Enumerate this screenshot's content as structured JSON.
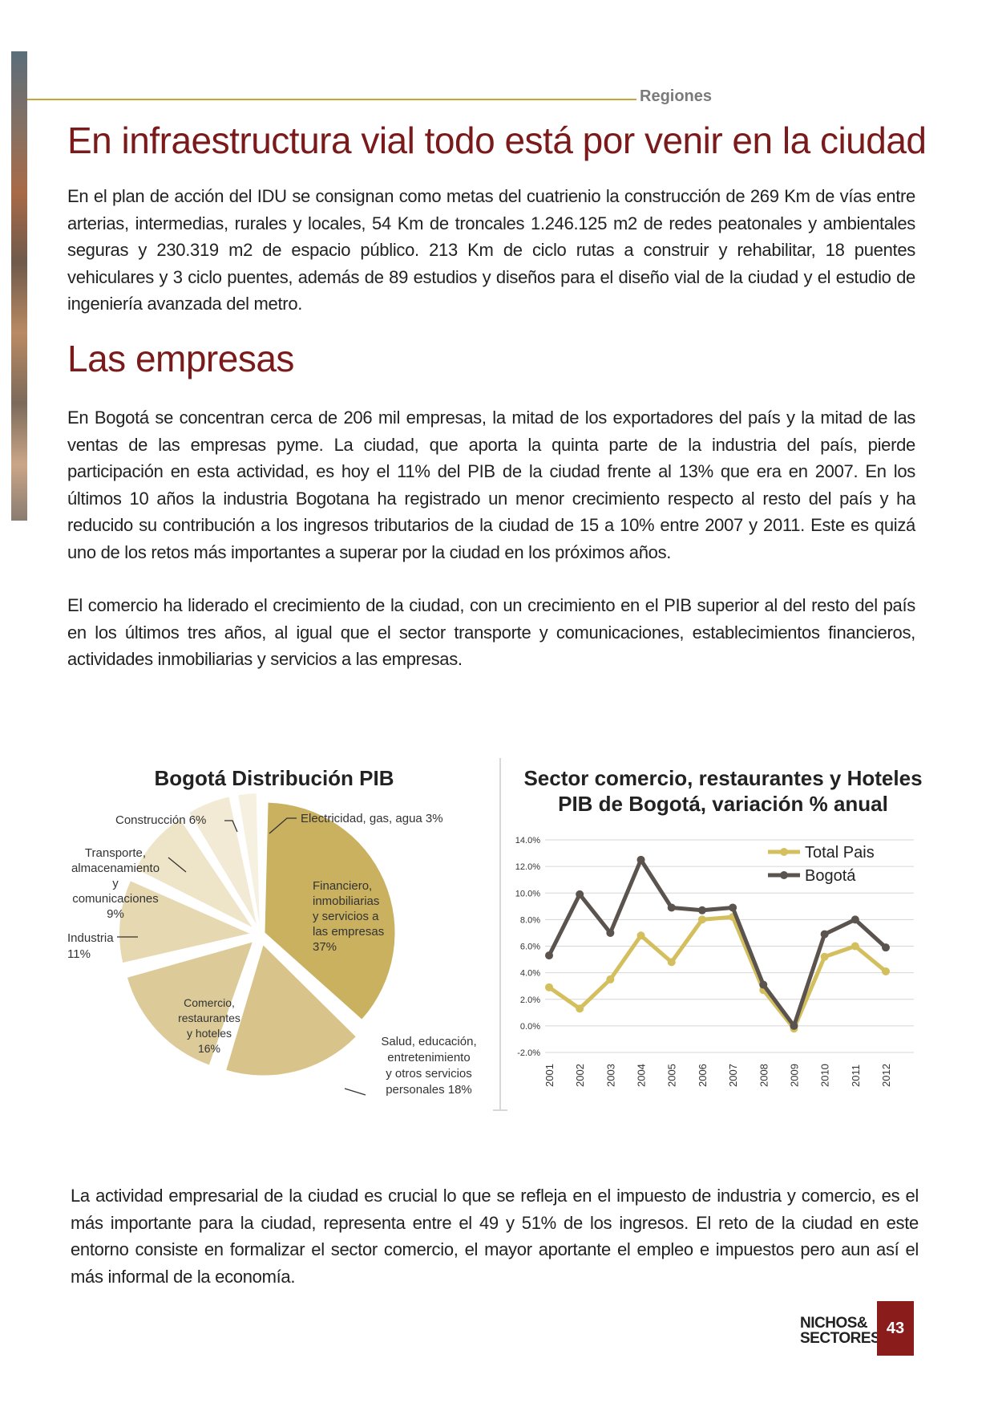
{
  "header": {
    "section": "Regiones"
  },
  "article": {
    "title_1": "En infraestructura vial todo está por venir en la ciudad",
    "paragraph_1": "En el plan de acción del IDU se consignan como metas del cuatrienio la construcción de 269 Km de vías entre arterias, intermedias, rurales y locales, 54 Km de troncales 1.246.125 m2 de redes peatonales y ambientales seguras y 230.319 m2 de espacio público. 213 Km de ciclo rutas a construir y rehabilitar, 18 puentes vehiculares y 3 ciclo puentes, además de 89 estudios y diseños para el diseño vial de la ciudad y el estudio de ingeniería avanzada del metro.",
    "title_2": "Las empresas",
    "paragraph_2": "En Bogotá se concentran cerca de 206 mil empresas, la mitad de los exportadores del país y la mitad de las ventas de las empresas pyme.  La ciudad, que aporta la quinta parte de la industria del país, pierde participación en esta actividad, es hoy el 11% del PIB de la ciudad frente al 13% que era en 2007. En los últimos 10 años la industria Bogotana ha registrado un menor crecimiento respecto al resto del país y ha reducido su contribución a los ingresos tributarios de la ciudad de 15 a 10% entre 2007 y 2011. Este es quizá uno de los retos más importantes a superar por la ciudad en los próximos años.",
    "paragraph_3": "El comercio ha liderado el crecimiento de la ciudad, con un crecimiento en el PIB superior al del resto del país en los últimos tres años, al igual que el sector transporte y comunicaciones, establecimientos financieros, actividades inmobiliarias y servicios a las empresas.",
    "paragraph_4": "La actividad empresarial de la ciudad es crucial lo que se refleja en el impuesto de industria y comercio, es el más importante para la ciudad, representa entre el 49 y 51% de los ingresos.  El reto de la ciudad en este entorno consiste en formalizar el sector comercio, el mayor aportante el empleo e impuestos pero aun así el más informal de la economía."
  },
  "chart_data": [
    {
      "type": "pie",
      "title": "Bogotá Distribución PIB",
      "slices": [
        {
          "label": "Financiero, inmobiliarias y servicios a las empresas 37%",
          "value": 37,
          "color": "#c9b160"
        },
        {
          "label": "Salud, educación, entretenimiento y otros servicios personales 18%",
          "value": 18,
          "color": "#d8c48a"
        },
        {
          "label": "Comercio, restaurantes y hoteles 16%",
          "value": 16,
          "color": "#dccb98"
        },
        {
          "label": "Industria 11%",
          "value": 11,
          "color": "#e6d8b0"
        },
        {
          "label": "Transporte, almacenamiento y comunicaciones 9%",
          "value": 9,
          "color": "#eee4c8"
        },
        {
          "label": "Construcción 6%",
          "value": 6,
          "color": "#f2ead4"
        },
        {
          "label": "Electricidad, gas, agua 3%",
          "value": 3,
          "color": "#f6f0e0"
        }
      ]
    },
    {
      "type": "line",
      "title_line1": "Sector comercio, restaurantes y Hoteles",
      "title_line2": "PIB de Bogotá, variación % anual",
      "x": [
        "2001",
        "2002",
        "2003",
        "2004",
        "2005",
        "2006",
        "2007",
        "2008",
        "2009",
        "2010",
        "2011",
        "2012"
      ],
      "ylim": [
        -2,
        14
      ],
      "yticks": [
        "-2.0%",
        "0.0%",
        "2.0%",
        "4.0%",
        "6.0%",
        "8.0%",
        "10.0%",
        "12.0%",
        "14.0%"
      ],
      "legend_position": "top-right",
      "grid": true,
      "series": [
        {
          "name": "Total Pais",
          "color": "#d4bf5e",
          "values": [
            2.9,
            1.3,
            3.5,
            6.8,
            4.8,
            8.0,
            8.2,
            2.7,
            -0.2,
            5.2,
            6.0,
            4.1
          ]
        },
        {
          "name": "Bogotá",
          "color": "#5a534e",
          "values": [
            5.3,
            9.9,
            7.0,
            12.5,
            8.9,
            8.7,
            8.9,
            3.1,
            0.0,
            6.9,
            8.0,
            5.9
          ]
        }
      ]
    }
  ],
  "footer": {
    "magazine_line1": "NICHOS&",
    "magazine_line2": "SECTORES",
    "page_number": "43"
  }
}
